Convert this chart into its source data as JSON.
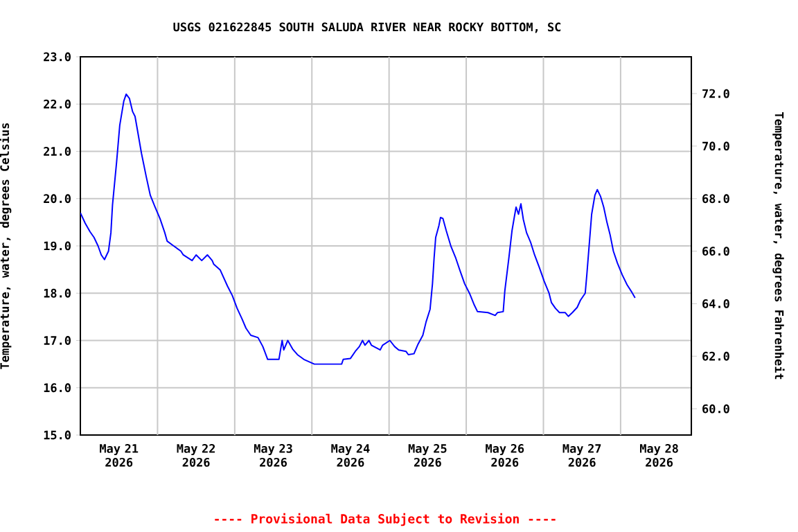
{
  "chart_data": {
    "type": "line",
    "title": "USGS 021622845 SOUTH SALUDA RIVER NEAR ROCKY BOTTOM, SC",
    "ylabel": "Temperature, water, degrees Celsius",
    "y2label": "Temperature, water, degrees Fahrenheit",
    "annotations": [
      "---- Provisional Data Subject to Revision ----"
    ],
    "xlim": [
      "2026-05-21T00:00",
      "2026-05-28T22:00"
    ],
    "xticks": [
      {
        "value": "2026-05-21T12:00",
        "label": "May 21 2026"
      },
      {
        "value": "2026-05-22T00:00",
        "label": null
      },
      {
        "value": "2026-05-22T12:00",
        "label": "May 22 2026"
      },
      {
        "value": "2026-05-23T00:00",
        "label": null
      },
      {
        "value": "2026-05-23T12:00",
        "label": "May 23 2026"
      },
      {
        "value": "2026-05-24T00:00",
        "label": null
      },
      {
        "value": "2026-05-24T12:00",
        "label": "May 24 2026"
      },
      {
        "value": "2026-05-25T00:00",
        "label": null
      },
      {
        "value": "2026-05-25T12:00",
        "label": "May 25 2026"
      },
      {
        "value": "2026-05-26T00:00",
        "label": null
      },
      {
        "value": "2026-05-26T12:00",
        "label": "May 26 2026"
      },
      {
        "value": "2026-05-27T00:00",
        "label": null
      },
      {
        "value": "2026-05-27T12:00",
        "label": "May 27 2026"
      },
      {
        "value": "2026-05-28T00:00",
        "label": null
      },
      {
        "value": "2026-05-28T12:00",
        "label": "May 28 2026"
      }
    ],
    "ylim": [
      15,
      23
    ],
    "yticks": [
      {
        "value": 15,
        "label": "15.0"
      },
      {
        "value": 16,
        "label": "16.0"
      },
      {
        "value": 17,
        "label": "17.0"
      },
      {
        "value": 18,
        "label": "18.0"
      },
      {
        "value": 19,
        "label": "19.0"
      },
      {
        "value": 20,
        "label": "20.0"
      },
      {
        "value": 21,
        "label": "21.0"
      },
      {
        "value": 22,
        "label": "22.0"
      },
      {
        "value": 23,
        "label": "23.0"
      }
    ],
    "y2lim": [
      59,
      73.4
    ],
    "y2ticks": [
      {
        "value": 60,
        "label": "60.0"
      },
      {
        "value": 62,
        "label": "62.0"
      },
      {
        "value": 64,
        "label": "64.0"
      },
      {
        "value": 66,
        "label": "66.0"
      },
      {
        "value": 68,
        "label": "68.0"
      },
      {
        "value": 70,
        "label": "70.0"
      },
      {
        "value": 72,
        "label": "72.0"
      }
    ],
    "grid": true,
    "line_style": "solid",
    "series": [
      {
        "color": "#0000ff",
        "x": [
          "2026-05-21T00:00",
          "2026-05-21T01:30",
          "2026-05-21T03:00",
          "2026-05-21T04:15",
          "2026-05-21T05:30",
          "2026-05-21T06:30",
          "2026-05-21T07:30",
          "2026-05-21T08:45",
          "2026-05-21T09:30",
          "2026-05-21T10:00",
          "2026-05-21T11:15",
          "2026-05-21T12:15",
          "2026-05-21T13:30",
          "2026-05-21T14:15",
          "2026-05-21T15:15",
          "2026-05-21T16:15",
          "2026-05-21T17:00",
          "2026-05-21T17:45",
          "2026-05-21T19:00",
          "2026-05-21T20:30",
          "2026-05-21T21:45",
          "2026-05-21T23:15",
          "2026-05-22T00:45",
          "2026-05-22T02:15",
          "2026-05-22T03:00",
          "2026-05-22T05:00",
          "2026-05-22T07:15",
          "2026-05-22T08:00",
          "2026-05-22T10:45",
          "2026-05-22T12:00",
          "2026-05-22T13:45",
          "2026-05-22T15:30",
          "2026-05-22T17:00",
          "2026-05-22T17:30",
          "2026-05-22T19:30",
          "2026-05-22T21:45",
          "2026-05-22T23:15",
          "2026-05-23T00:45",
          "2026-05-23T02:15",
          "2026-05-23T03:30",
          "2026-05-23T05:00",
          "2026-05-23T07:15",
          "2026-05-23T08:45",
          "2026-05-23T10:15",
          "2026-05-23T13:45",
          "2026-05-23T14:45",
          "2026-05-23T15:15",
          "2026-05-23T16:30",
          "2026-05-23T18:00",
          "2026-05-23T19:30",
          "2026-05-23T21:30",
          "2026-05-24T00:45",
          "2026-05-24T05:00",
          "2026-05-24T09:15",
          "2026-05-24T09:45",
          "2026-05-24T12:00",
          "2026-05-24T13:30",
          "2026-05-24T14:45",
          "2026-05-24T15:45",
          "2026-05-24T16:30",
          "2026-05-24T17:45",
          "2026-05-24T18:30",
          "2026-05-24T21:15",
          "2026-05-24T22:00",
          "2026-05-25T00:15",
          "2026-05-25T01:45",
          "2026-05-25T03:00",
          "2026-05-25T05:15",
          "2026-05-25T06:00",
          "2026-05-25T07:45",
          "2026-05-25T09:00",
          "2026-05-25T10:30",
          "2026-05-25T11:30",
          "2026-05-25T12:45",
          "2026-05-25T13:30",
          "2026-05-25T14:00",
          "2026-05-25T14:30",
          "2026-05-25T15:30",
          "2026-05-25T16:00",
          "2026-05-25T16:45",
          "2026-05-25T17:45",
          "2026-05-25T19:15",
          "2026-05-25T20:45",
          "2026-05-25T22:00",
          "2026-05-25T23:30",
          "2026-05-26T01:00",
          "2026-05-26T02:30",
          "2026-05-26T03:30",
          "2026-05-26T06:45",
          "2026-05-26T09:00",
          "2026-05-26T09:45",
          "2026-05-26T11:30",
          "2026-05-26T12:00",
          "2026-05-26T13:15",
          "2026-05-26T14:15",
          "2026-05-26T15:00",
          "2026-05-26T15:30",
          "2026-05-26T16:15",
          "2026-05-26T17:00",
          "2026-05-26T17:45",
          "2026-05-26T18:45",
          "2026-05-26T20:00",
          "2026-05-26T21:15",
          "2026-05-26T22:45",
          "2026-05-27T00:15",
          "2026-05-27T01:45",
          "2026-05-27T02:30",
          "2026-05-27T03:45",
          "2026-05-27T05:00",
          "2026-05-27T06:45",
          "2026-05-27T07:45",
          "2026-05-27T09:00",
          "2026-05-27T10:30",
          "2026-05-27T11:30",
          "2026-05-27T13:00",
          "2026-05-27T13:30",
          "2026-05-27T14:15",
          "2026-05-27T15:00",
          "2026-05-27T16:00",
          "2026-05-27T16:45",
          "2026-05-27T17:45",
          "2026-05-27T18:45",
          "2026-05-27T19:45",
          "2026-05-27T20:45",
          "2026-05-27T21:45",
          "2026-05-27T23:00",
          "2026-05-28T00:30",
          "2026-05-28T02:00",
          "2026-05-28T03:30",
          "2026-05-28T04:30"
        ],
        "values": [
          19.7,
          19.48,
          19.3,
          19.18,
          19.0,
          18.81,
          18.71,
          18.89,
          19.28,
          19.87,
          20.76,
          21.55,
          22.06,
          22.21,
          22.12,
          21.84,
          21.74,
          21.45,
          20.96,
          20.46,
          20.07,
          19.82,
          19.58,
          19.28,
          19.1,
          19.0,
          18.89,
          18.81,
          18.69,
          18.81,
          18.69,
          18.81,
          18.69,
          18.61,
          18.49,
          18.15,
          17.95,
          17.68,
          17.46,
          17.26,
          17.11,
          17.06,
          16.87,
          16.6,
          16.6,
          17.0,
          16.8,
          17.0,
          16.82,
          16.7,
          16.6,
          16.5,
          16.5,
          16.5,
          16.6,
          16.62,
          16.77,
          16.87,
          17.0,
          16.9,
          17.0,
          16.9,
          16.8,
          16.9,
          17.0,
          16.87,
          16.8,
          16.77,
          16.7,
          16.72,
          16.92,
          17.11,
          17.39,
          17.66,
          18.2,
          18.74,
          19.18,
          19.43,
          19.6,
          19.58,
          19.33,
          18.99,
          18.74,
          18.49,
          18.2,
          18.0,
          17.75,
          17.61,
          17.59,
          17.53,
          17.59,
          17.61,
          18.05,
          18.74,
          19.33,
          19.63,
          19.82,
          19.67,
          19.89,
          19.56,
          19.28,
          19.08,
          18.81,
          18.54,
          18.25,
          18.0,
          17.8,
          17.68,
          17.59,
          17.59,
          17.51,
          17.59,
          17.7,
          17.85,
          18.0,
          18.39,
          19.03,
          19.67,
          20.07,
          20.19,
          20.05,
          19.82,
          19.5,
          19.23,
          18.89,
          18.64,
          18.39,
          18.18,
          18.02,
          17.9
        ]
      }
    ]
  }
}
